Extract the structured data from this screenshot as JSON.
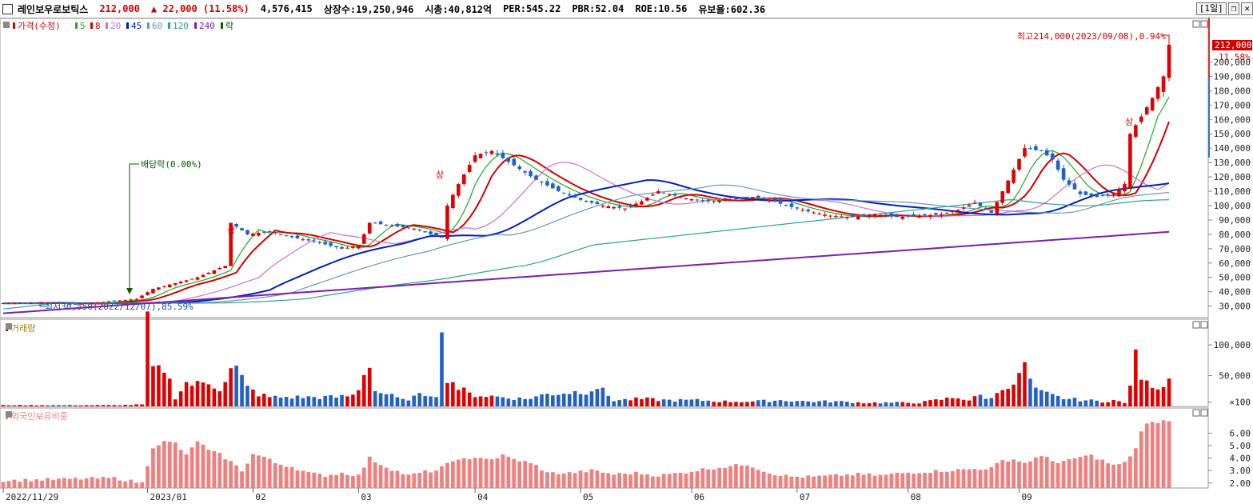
{
  "header": {
    "stock_name": "레인보우로보틱스",
    "price": "212,000",
    "change": "▲ 22,000 (11.58%)",
    "volume": "4,576,415",
    "listed_shares": "상장수:19,250,946",
    "market_cap": "시총:40,812억",
    "per": "PER:545.22",
    "pbr": "PBR:52.04",
    "roe": "ROE:10.56",
    "retention": "유보율:602.36",
    "period": "[1일]"
  },
  "price_panel": {
    "legend": [
      {
        "text": "가격(수정)",
        "color": "#d40000"
      },
      {
        "text": "5",
        "color": "#1fa81f"
      },
      {
        "text": "8",
        "color": "#d40000"
      },
      {
        "text": "20",
        "color": "#d070d0"
      },
      {
        "text": "45",
        "color": "#0020c0"
      },
      {
        "text": "60",
        "color": "#6a96c0"
      },
      {
        "text": "120",
        "color": "#2aa58a"
      },
      {
        "text": "240",
        "color": "#7a1fb0"
      },
      {
        "text": "락",
        "color": "#006000"
      }
    ],
    "high_annotation": "최고214,000(2023/09/08),0.94%",
    "low_annotation": "최저30,550(2022/12/07),85.59%",
    "dividend_annotation": "배당락(0.00%)",
    "upper_limit_marker": "상",
    "current_price_tag": "212,000",
    "current_change_tag": "11.58%",
    "y_ticks": [
      "200,000",
      "190,000",
      "180,000",
      "170,000",
      "160,000",
      "150,000",
      "140,000",
      "130,000",
      "120,000",
      "110,000",
      "100,000",
      "90,000",
      "80,000",
      "70,000",
      "60,000",
      "50,000",
      "40,000",
      "30,000"
    ]
  },
  "volume_panel": {
    "legend": "거래량",
    "y_ticks": [
      "100,000",
      "50,000",
      "×100"
    ]
  },
  "foreign_panel": {
    "legend": "외국인보유비중",
    "y_ticks": [
      "6.00",
      "5.00",
      "4.00",
      "3.00",
      "2.00"
    ]
  },
  "x_labels": [
    "2022/11/29",
    "2023/01",
    "02",
    "03",
    "04",
    "05",
    "06",
    "07",
    "08",
    "09"
  ],
  "colors": {
    "up": "#e00000",
    "down": "#2060c8",
    "foreign": "#f08080"
  },
  "chart_data": {
    "type": "candlestick",
    "series_points": [
      [
        0,
        32000
      ],
      [
        8,
        32500
      ],
      [
        12,
        31200
      ],
      [
        18,
        33000
      ],
      [
        24,
        35000
      ],
      [
        27,
        42000
      ],
      [
        31,
        46000
      ],
      [
        35,
        50000
      ],
      [
        38,
        55000
      ],
      [
        40,
        58000
      ],
      [
        41,
        88000
      ],
      [
        44,
        80000
      ],
      [
        48,
        82000
      ],
      [
        52,
        78000
      ],
      [
        56,
        75000
      ],
      [
        59,
        72000
      ],
      [
        61,
        70000
      ],
      [
        64,
        72000
      ],
      [
        66,
        88000
      ],
      [
        70,
        86000
      ],
      [
        74,
        84000
      ],
      [
        77,
        80000
      ],
      [
        79,
        78000
      ],
      [
        80,
        100000
      ],
      [
        82,
        115000
      ],
      [
        85,
        135000
      ],
      [
        88,
        138000
      ],
      [
        92,
        128000
      ],
      [
        96,
        118000
      ],
      [
        100,
        110000
      ],
      [
        104,
        104000
      ],
      [
        108,
        100000
      ],
      [
        112,
        98000
      ],
      [
        115,
        103000
      ],
      [
        118,
        110000
      ],
      [
        120,
        108000
      ],
      [
        123,
        105000
      ],
      [
        127,
        103000
      ],
      [
        131,
        104000
      ],
      [
        135,
        106000
      ],
      [
        138,
        104000
      ],
      [
        141,
        100000
      ],
      [
        145,
        96000
      ],
      [
        149,
        93000
      ],
      [
        153,
        92000
      ],
      [
        157,
        94000
      ],
      [
        161,
        92000
      ],
      [
        165,
        93000
      ],
      [
        169,
        94000
      ],
      [
        172,
        97000
      ],
      [
        175,
        102000
      ],
      [
        178,
        95000
      ],
      [
        180,
        110000
      ],
      [
        182,
        125000
      ],
      [
        184,
        140000
      ],
      [
        187,
        138000
      ],
      [
        189,
        132000
      ],
      [
        191,
        118000
      ],
      [
        194,
        108000
      ],
      [
        197,
        106000
      ],
      [
        200,
        108000
      ],
      [
        202,
        115000
      ],
      [
        203,
        150000
      ],
      [
        205,
        162000
      ],
      [
        207,
        175000
      ],
      [
        209,
        190000
      ],
      [
        210,
        212000
      ]
    ],
    "volume_points": [
      [
        0,
        2
      ],
      [
        20,
        2
      ],
      [
        25,
        3
      ],
      [
        26,
        125
      ],
      [
        27,
        60
      ],
      [
        28,
        55
      ],
      [
        29,
        65
      ],
      [
        31,
        15
      ],
      [
        33,
        38
      ],
      [
        35,
        35
      ],
      [
        37,
        40
      ],
      [
        39,
        30
      ],
      [
        41,
        58
      ],
      [
        42,
        60
      ],
      [
        44,
        30
      ],
      [
        46,
        20
      ],
      [
        48,
        15
      ],
      [
        52,
        15
      ],
      [
        56,
        15
      ],
      [
        60,
        15
      ],
      [
        63,
        18
      ],
      [
        64,
        30
      ],
      [
        66,
        75
      ],
      [
        67,
        25
      ],
      [
        69,
        20
      ],
      [
        72,
        10
      ],
      [
        76,
        20
      ],
      [
        78,
        20
      ],
      [
        79,
        105
      ],
      [
        80,
        50
      ],
      [
        81,
        40
      ],
      [
        82,
        30
      ],
      [
        84,
        20
      ],
      [
        86,
        18
      ],
      [
        90,
        15
      ],
      [
        94,
        12
      ],
      [
        98,
        20
      ],
      [
        105,
        25
      ],
      [
        107,
        32
      ],
      [
        110,
        10
      ],
      [
        115,
        12
      ],
      [
        120,
        10
      ],
      [
        125,
        10
      ],
      [
        130,
        8
      ],
      [
        135,
        8
      ],
      [
        140,
        10
      ],
      [
        145,
        8
      ],
      [
        150,
        8
      ],
      [
        155,
        6
      ],
      [
        160,
        6
      ],
      [
        165,
        6
      ],
      [
        168,
        10
      ],
      [
        172,
        15
      ],
      [
        174,
        10
      ],
      [
        176,
        18
      ],
      [
        178,
        12
      ],
      [
        180,
        35
      ],
      [
        182,
        30
      ],
      [
        183,
        55
      ],
      [
        184,
        62
      ],
      [
        186,
        25
      ],
      [
        188,
        20
      ],
      [
        190,
        15
      ],
      [
        192,
        12
      ],
      [
        195,
        10
      ],
      [
        198,
        8
      ],
      [
        200,
        10
      ],
      [
        202,
        5
      ],
      [
        204,
        75
      ],
      [
        205,
        50
      ],
      [
        206,
        35
      ],
      [
        207,
        38
      ],
      [
        208,
        32
      ],
      [
        209,
        38
      ],
      [
        210,
        45
      ]
    ],
    "foreign_points": [
      [
        0,
        2.2
      ],
      [
        10,
        2.3
      ],
      [
        20,
        2.4
      ],
      [
        25,
        2.0
      ],
      [
        27,
        4.9
      ],
      [
        29,
        5.3
      ],
      [
        31,
        5.2
      ],
      [
        33,
        4.2
      ],
      [
        35,
        5.4
      ],
      [
        37,
        4.6
      ],
      [
        39,
        4.3
      ],
      [
        41,
        3.7
      ],
      [
        43,
        3.0
      ],
      [
        45,
        4.3
      ],
      [
        47,
        4.1
      ],
      [
        49,
        3.6
      ],
      [
        52,
        3.3
      ],
      [
        55,
        2.8
      ],
      [
        58,
        2.6
      ],
      [
        61,
        2.8
      ],
      [
        64,
        2.6
      ],
      [
        66,
        4.0
      ],
      [
        68,
        3.5
      ],
      [
        70,
        3.1
      ],
      [
        73,
        2.6
      ],
      [
        76,
        2.9
      ],
      [
        78,
        3.0
      ],
      [
        80,
        3.5
      ],
      [
        82,
        4.0
      ],
      [
        84,
        3.8
      ],
      [
        86,
        4.1
      ],
      [
        88,
        3.9
      ],
      [
        90,
        4.2
      ],
      [
        92,
        3.9
      ],
      [
        94,
        3.7
      ],
      [
        96,
        3.4
      ],
      [
        98,
        2.8
      ],
      [
        102,
        2.8
      ],
      [
        106,
        3.0
      ],
      [
        110,
        2.7
      ],
      [
        114,
        2.8
      ],
      [
        118,
        2.6
      ],
      [
        122,
        2.8
      ],
      [
        126,
        3.1
      ],
      [
        130,
        3.3
      ],
      [
        134,
        3.5
      ],
      [
        138,
        2.8
      ],
      [
        142,
        2.5
      ],
      [
        146,
        2.5
      ],
      [
        150,
        2.6
      ],
      [
        154,
        2.7
      ],
      [
        158,
        2.6
      ],
      [
        162,
        2.8
      ],
      [
        166,
        2.9
      ],
      [
        170,
        3.0
      ],
      [
        174,
        3.1
      ],
      [
        178,
        3.2
      ],
      [
        180,
        3.8
      ],
      [
        182,
        3.9
      ],
      [
        184,
        3.6
      ],
      [
        186,
        4.0
      ],
      [
        188,
        4.1
      ],
      [
        190,
        3.6
      ],
      [
        192,
        3.8
      ],
      [
        194,
        4.1
      ],
      [
        196,
        4.2
      ],
      [
        198,
        3.8
      ],
      [
        200,
        3.4
      ],
      [
        202,
        3.6
      ],
      [
        204,
        4.8
      ],
      [
        205,
        6.1
      ],
      [
        206,
        6.7
      ],
      [
        208,
        6.9
      ],
      [
        210,
        7.0
      ]
    ],
    "ma_lines": [
      {
        "name": "5",
        "color": "#1fa81f",
        "lag": 3,
        "smooth": 2
      },
      {
        "name": "8",
        "color": "#d40000",
        "lag": 5,
        "smooth": 3
      },
      {
        "name": "20",
        "color": "#d070d0",
        "lag": 12,
        "smooth": 6
      },
      {
        "name": "45",
        "color": "#0020c0",
        "lag": 22,
        "smooth": 14
      },
      {
        "name": "60",
        "color": "#6a96c0",
        "lag": 30,
        "smooth": 18
      },
      {
        "name": "120",
        "color": "#2aa58a",
        "lag": 55,
        "smooth": 40
      },
      {
        "name": "240",
        "color": "#7a1fb0",
        "lag": 90,
        "smooth": 80
      }
    ],
    "ylim_price": [
      22000,
      222000
    ],
    "ylim_volume": [
      0,
      130
    ],
    "ylim_foreign": [
      1.6,
      7.5
    ],
    "n_days": 211
  }
}
